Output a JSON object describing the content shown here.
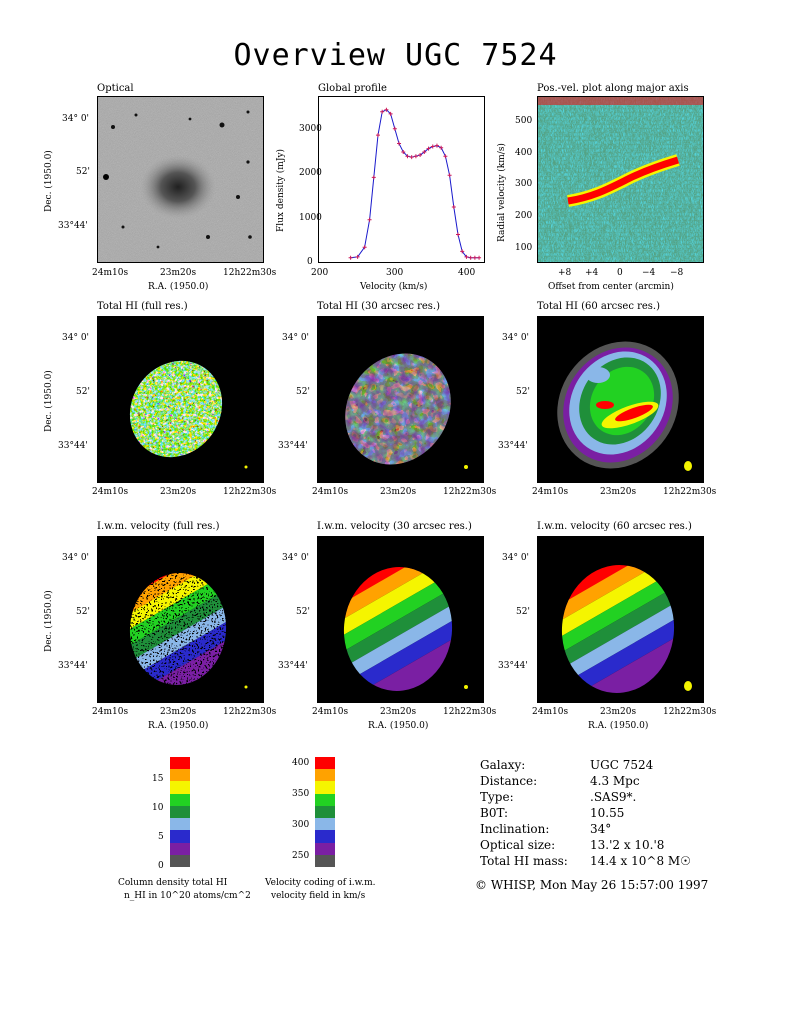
{
  "page": {
    "title": "Overview UGC 7524"
  },
  "panels": {
    "optical": {
      "title": "Optical"
    },
    "global_profile": {
      "title": "Global profile"
    },
    "pv_plot": {
      "title": "Pos.-vel. plot along major axis"
    },
    "total_hi_full": {
      "title": "Total HI (full res.)"
    },
    "total_hi_30": {
      "title": "Total HI (30 arcsec res.)"
    },
    "total_hi_60": {
      "title": "Total HI (60 arcsec res.)"
    },
    "iwm_full": {
      "title": "I.w.m. velocity (full res.)"
    },
    "iwm_30": {
      "title": "I.w.m. velocity (30 arcsec res.)"
    },
    "iwm_60": {
      "title": "I.w.m. velocity (60 arcsec res.)"
    }
  },
  "sky_axes": {
    "dec_label": "Dec. (1950.0)",
    "ra_label": "R.A. (1950.0)",
    "dec_ticks": [
      "34° 0'",
      "52'",
      "33°44'"
    ],
    "ra_ticks": [
      "24m10s",
      "23m20s",
      "12h22m30s"
    ]
  },
  "profile_axes": {
    "xlabel": "Velocity (km/s)",
    "ylabel": "Flux density (mJy)",
    "xticks": [
      "200",
      "300",
      "400"
    ],
    "yticks": [
      "0",
      "1000",
      "2000",
      "3000"
    ]
  },
  "pv_axes": {
    "xlabel": "Offset from center (arcmin)",
    "ylabel": "Radial velocity (km/s)",
    "xticks": [
      "+8",
      "+4",
      "0",
      "−4",
      "−8"
    ],
    "yticks": [
      "100",
      "200",
      "300",
      "400",
      "500"
    ]
  },
  "colorbars": {
    "column_density": {
      "ticks": [
        "0",
        "5",
        "10",
        "15"
      ],
      "caption_line1": "Column density total HI",
      "caption_line2": "n_HI in 10^20 atoms/cm^2",
      "colors": [
        "#555555",
        "#7a1fa3",
        "#2a2acc",
        "#8ab7e8",
        "#1f8f3a",
        "#22d122",
        "#f5f500",
        "#ffa200",
        "#ff0000"
      ]
    },
    "velocity": {
      "ticks": [
        "250",
        "300",
        "350",
        "400"
      ],
      "caption_line1": "Velocity coding of i.w.m.",
      "caption_line2": "velocity field in km/s",
      "colors": [
        "#555555",
        "#7a1fa3",
        "#2a2acc",
        "#8ab7e8",
        "#1f8f3a",
        "#22d122",
        "#f5f500",
        "#ffa200",
        "#ff0000"
      ]
    }
  },
  "galaxy_info": {
    "rows": [
      {
        "label": "Galaxy:",
        "value": "UGC 7524"
      },
      {
        "label": "Distance:",
        "value": "4.3 Mpc"
      },
      {
        "label": "Type:",
        "value": ".SAS9*."
      },
      {
        "label": "B0T:",
        "value": "10.55"
      },
      {
        "label": "Inclination:",
        "value": "34°"
      },
      {
        "label": "Optical size:",
        "value": "13.'2 x 10.'8"
      },
      {
        "label": "Total HI mass:",
        "value": "14.4 x 10^8 M☉"
      }
    ],
    "footer": "© WHISP, Mon May 26 15:57:00 1997"
  },
  "chart_data": [
    {
      "type": "line",
      "x": [
        235,
        245,
        255,
        262,
        268,
        274,
        280,
        286,
        292,
        298,
        304,
        310,
        316,
        322,
        328,
        334,
        340,
        346,
        352,
        358,
        364,
        370,
        376,
        382,
        388,
        394,
        400,
        406,
        412,
        418
      ],
      "y": [
        0,
        20,
        250,
        900,
        1900,
        2900,
        3450,
        3500,
        3400,
        3050,
        2700,
        2500,
        2400,
        2380,
        2400,
        2430,
        2500,
        2580,
        2630,
        2650,
        2600,
        2400,
        1950,
        1200,
        550,
        150,
        20,
        0,
        0,
        0
      ],
      "xlabel": "Velocity (km/s)",
      "ylabel": "Flux density (mJy)",
      "xlim": [
        190,
        425
      ],
      "ylim": [
        -100,
        3800
      ]
    }
  ]
}
